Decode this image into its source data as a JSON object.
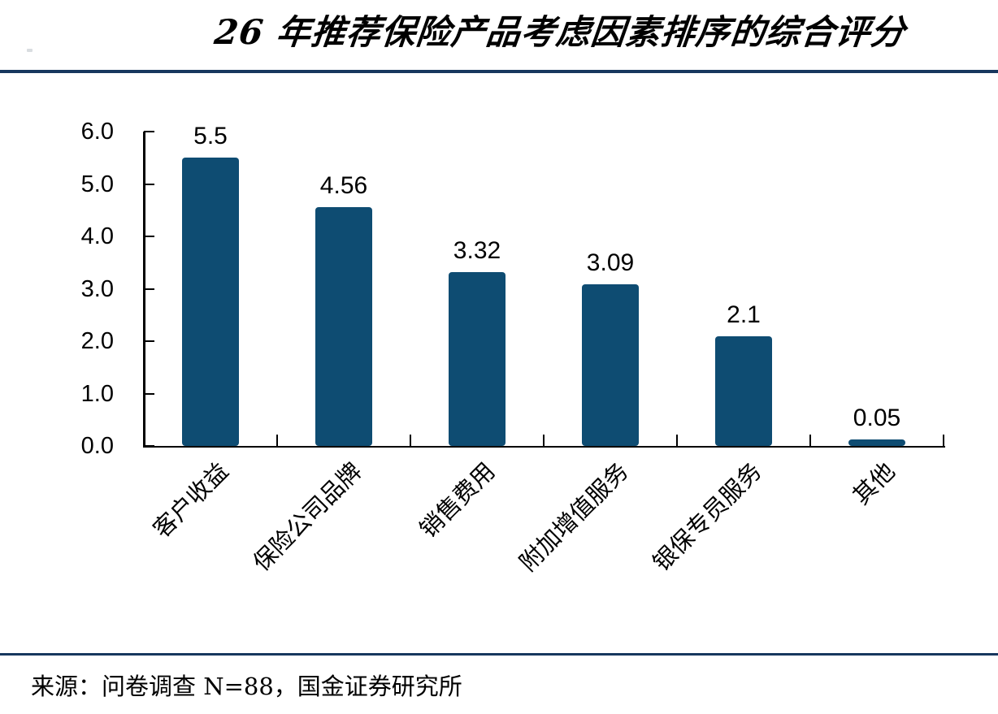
{
  "header": {
    "title": "26 年推荐保险产品考虑因素排序的综合评分"
  },
  "chart_data": {
    "type": "bar",
    "title": "26 年推荐保险产品考虑因素排序的综合评分",
    "categories": [
      "客户收益",
      "保险公司品牌",
      "销售费用",
      "附加增值服务",
      "银保专员服务",
      "其他"
    ],
    "values": [
      5.5,
      4.56,
      3.32,
      3.09,
      2.1,
      0.05
    ],
    "data_labels": [
      "5.5",
      "4.56",
      "3.32",
      "3.09",
      "2.1",
      "0.05"
    ],
    "xlabel": "",
    "ylabel": "",
    "ylim": [
      0,
      6
    ],
    "ytick_step": 1.0,
    "ytick_labels": [
      "0.0",
      "1.0",
      "2.0",
      "3.0",
      "4.0",
      "5.0",
      "6.0"
    ],
    "grid": false,
    "legend_position": "none",
    "bar_color": "#0e4c72",
    "axis_color": "#000000"
  },
  "footer": {
    "source": "来源：问卷调查 N=88，国金证券研究所"
  },
  "colors": {
    "divider": "#17375e",
    "bar": "#0e4c72",
    "text": "#000000",
    "background": "#ffffff"
  }
}
